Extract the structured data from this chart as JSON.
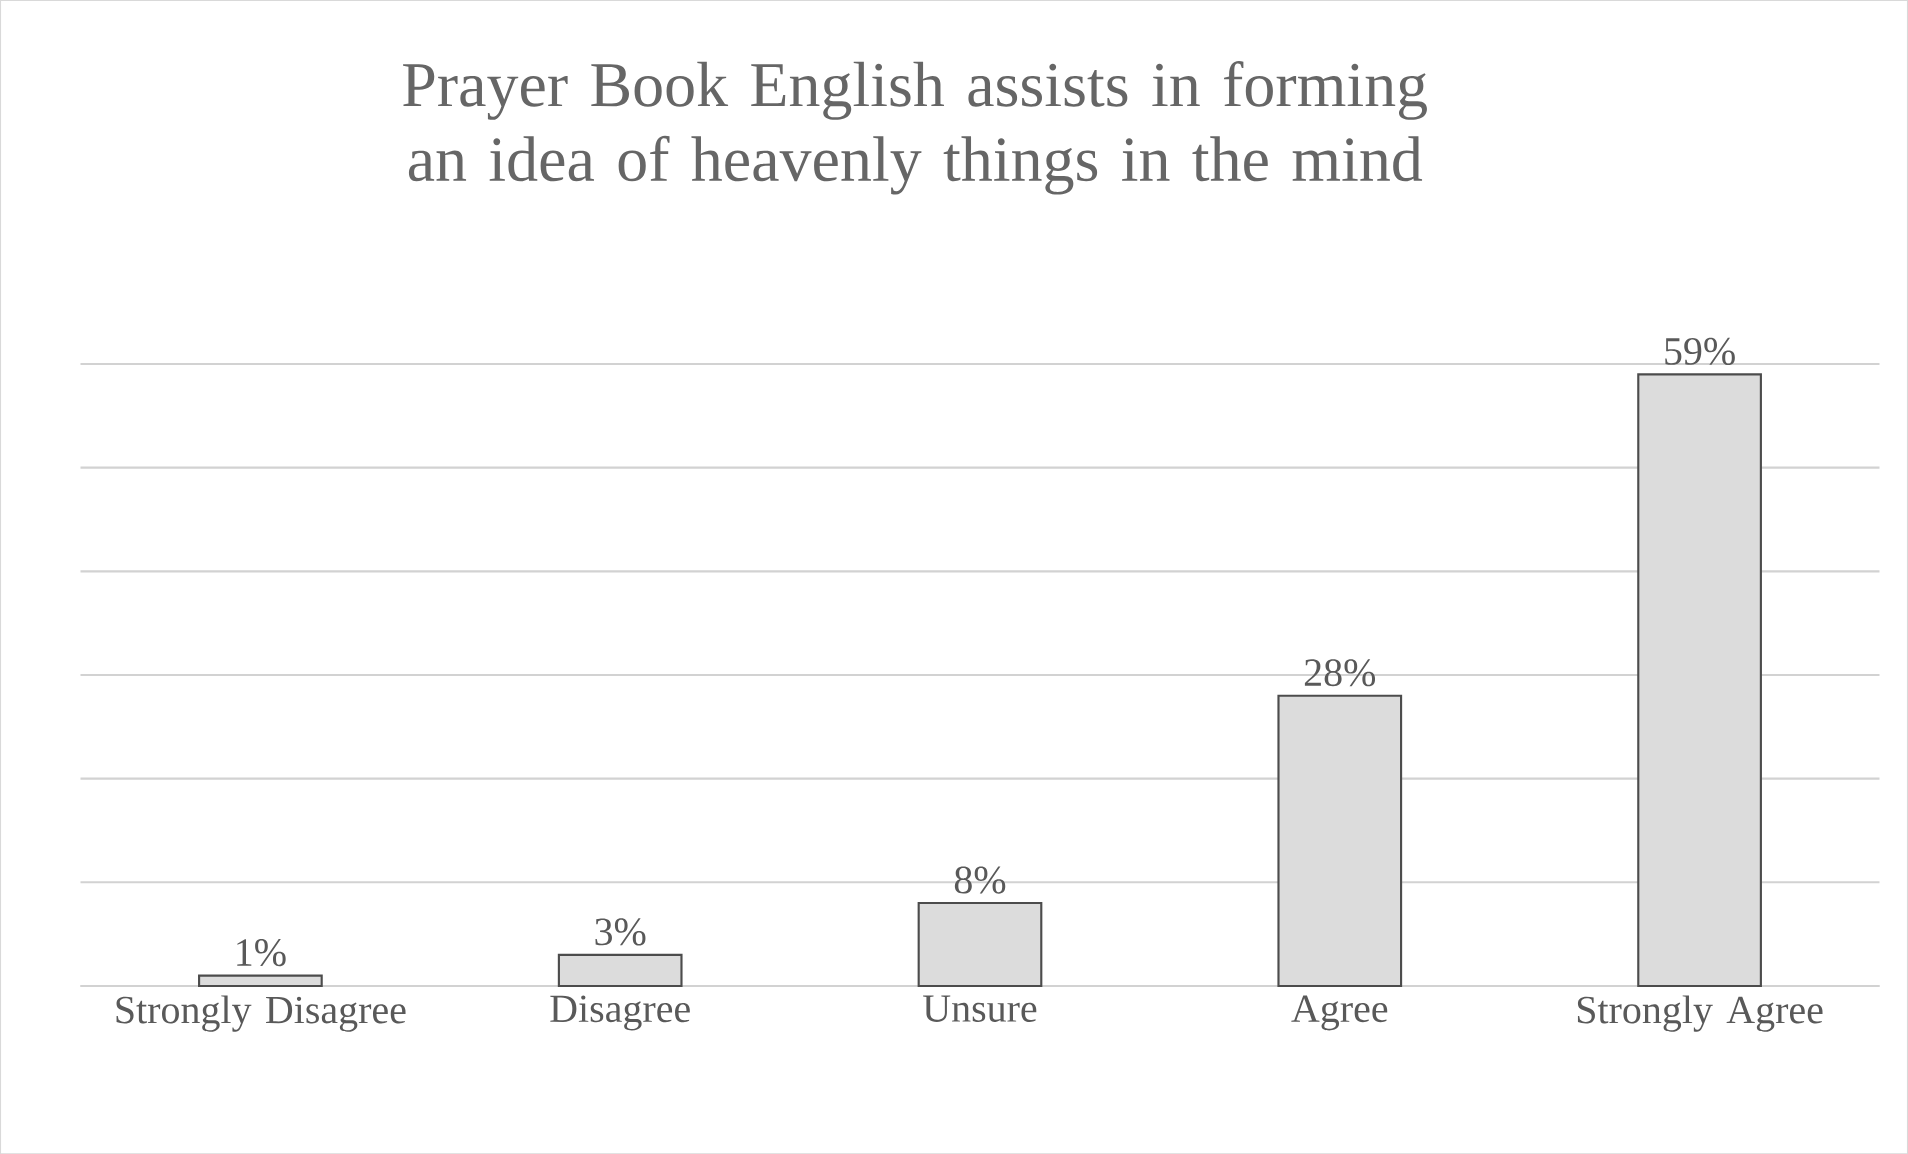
{
  "chart_data": {
    "type": "bar",
    "title": "Prayer Book English assists in forming an idea of heavenly things in the mind",
    "categories": [
      "Strongly Disagree",
      "Disagree",
      "Unsure",
      "Agree",
      "Strongly Agree"
    ],
    "values": [
      1,
      3,
      8,
      28,
      59
    ],
    "value_labels": [
      "1%",
      "3%",
      "8%",
      "28%",
      "59%"
    ],
    "color": "#dcdcdc",
    "grid": "y",
    "tick_labels": "x"
  }
}
